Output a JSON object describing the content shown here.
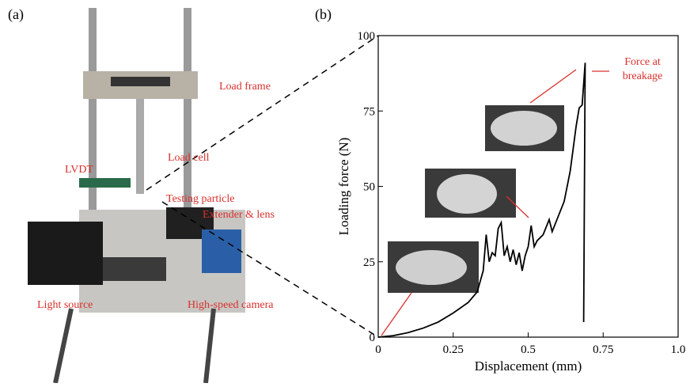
{
  "panels": {
    "a": "(a)",
    "b": "(b)"
  },
  "photo_labels": [
    "Load frame",
    "Load cell",
    "LVDT",
    "Testing particle",
    "Extender & lens",
    "Light source",
    "High-speed camera"
  ],
  "chart_data": {
    "type": "line",
    "xlabel": "Displacement (mm)",
    "ylabel": "Loading force (N)",
    "annotations": [
      "Force at",
      "breakage"
    ],
    "x": [
      0,
      0.05,
      0.1,
      0.15,
      0.2,
      0.25,
      0.3,
      0.33,
      0.35,
      0.36,
      0.37,
      0.38,
      0.39,
      0.4,
      0.41,
      0.42,
      0.43,
      0.44,
      0.45,
      0.46,
      0.47,
      0.48,
      0.49,
      0.5,
      0.51,
      0.52,
      0.53,
      0.55,
      0.57,
      0.58,
      0.6,
      0.62,
      0.64,
      0.66,
      0.67,
      0.68,
      0.69,
      0.685
    ],
    "values": [
      0,
      0.5,
      1.5,
      3,
      5,
      8,
      11.5,
      15,
      22,
      34,
      25,
      28,
      27,
      36,
      38,
      27,
      30,
      25,
      29,
      24,
      28,
      22,
      27,
      30,
      37,
      30,
      32,
      34,
      39,
      35,
      40,
      45,
      55,
      70,
      76,
      77,
      91,
      5
    ],
    "color": "#000000",
    "xlim": [
      0,
      1
    ],
    "ylim": [
      0,
      100
    ],
    "xticks": [
      0,
      0.25,
      0.5,
      0.75,
      {
        "value": 1,
        "label": "1.0"
      }
    ],
    "yticks": [
      0,
      25,
      50,
      75,
      100
    ]
  }
}
